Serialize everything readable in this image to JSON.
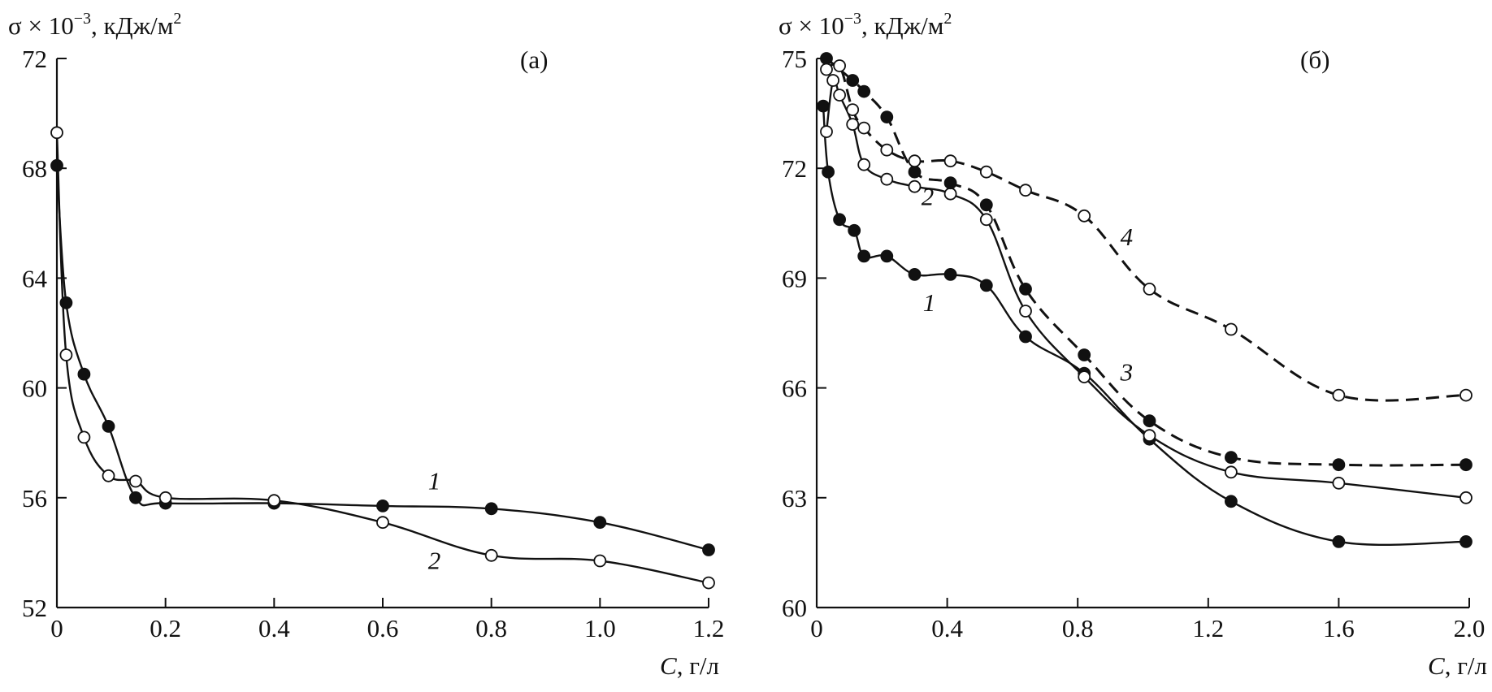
{
  "chart_data": [
    {
      "type": "line",
      "panel_label": "(а)",
      "ylabel_prefix": "σ × 10",
      "ylabel_exp": "−3",
      "ylabel_unit": ", кДж/м",
      "ylabel_unit_exp": "2",
      "xlabel_var": "C",
      "xlabel_unit": ", г/л",
      "xlim": [
        0,
        1.2
      ],
      "ylim": [
        52,
        72
      ],
      "xticks": [
        0,
        0.2,
        0.4,
        0.6,
        0.8,
        1.0,
        1.2
      ],
      "xtick_labels": [
        "0",
        "0.2",
        "0.4",
        "0.6",
        "0.8",
        "1.0",
        "1.2"
      ],
      "yticks": [
        52,
        56,
        60,
        64,
        68,
        72
      ],
      "ytick_labels": [
        "52",
        "56",
        "60",
        "64",
        "68",
        "72"
      ],
      "series": [
        {
          "name": "1",
          "marker": "filled",
          "dashed": false,
          "points": [
            [
              0,
              68.1
            ],
            [
              0.017,
              63.1
            ],
            [
              0.05,
              60.5
            ],
            [
              0.095,
              58.6
            ],
            [
              0.145,
              56.0
            ],
            [
              0.2,
              55.8
            ],
            [
              0.4,
              55.8
            ],
            [
              0.6,
              55.7
            ],
            [
              0.8,
              55.6
            ],
            [
              1.0,
              55.1
            ],
            [
              1.2,
              54.1
            ]
          ],
          "label_at": [
            0.695,
            56.3
          ]
        },
        {
          "name": "2",
          "marker": "open",
          "dashed": false,
          "points": [
            [
              0,
              69.3
            ],
            [
              0.017,
              61.2
            ],
            [
              0.05,
              58.2
            ],
            [
              0.095,
              56.8
            ],
            [
              0.145,
              56.6
            ],
            [
              0.2,
              56.0
            ],
            [
              0.4,
              55.9
            ],
            [
              0.6,
              55.1
            ],
            [
              0.8,
              53.9
            ],
            [
              1.0,
              53.7
            ],
            [
              1.2,
              52.9
            ]
          ],
          "label_at": [
            0.695,
            53.4
          ]
        }
      ]
    },
    {
      "type": "line",
      "panel_label": "(б)",
      "ylabel_prefix": "σ × 10",
      "ylabel_exp": "−3",
      "ylabel_unit": ", кДж/м",
      "ylabel_unit_exp": "2",
      "xlabel_var": "C",
      "xlabel_unit": ", г/л",
      "xlim": [
        0,
        2.0
      ],
      "ylim": [
        60,
        75
      ],
      "xticks": [
        0,
        0.4,
        0.8,
        1.2,
        1.6,
        2.0
      ],
      "xtick_labels": [
        "0",
        "0.4",
        "0.8",
        "1.2",
        "1.6",
        "2.0"
      ],
      "yticks": [
        60,
        63,
        66,
        69,
        72,
        75
      ],
      "ytick_labels": [
        "60",
        "63",
        "66",
        "69",
        "72",
        "75"
      ],
      "series": [
        {
          "name": "1",
          "marker": "filled",
          "dashed": false,
          "points": [
            [
              0.02,
              73.7
            ],
            [
              0.035,
              71.9
            ],
            [
              0.07,
              70.6
            ],
            [
              0.115,
              70.3
            ],
            [
              0.145,
              69.6
            ],
            [
              0.215,
              69.6
            ],
            [
              0.3,
              69.1
            ],
            [
              0.41,
              69.1
            ],
            [
              0.52,
              68.8
            ],
            [
              0.64,
              67.4
            ],
            [
              0.82,
              66.4
            ],
            [
              1.02,
              64.6
            ],
            [
              1.27,
              62.9
            ],
            [
              1.6,
              61.8
            ],
            [
              1.99,
              61.8
            ]
          ],
          "label_at": [
            0.345,
            68.1
          ]
        },
        {
          "name": "2",
          "marker": "open",
          "dashed": false,
          "points": [
            [
              0.03,
              73.0
            ],
            [
              0.05,
              74.4
            ],
            [
              0.07,
              74.0
            ],
            [
              0.11,
              73.2
            ],
            [
              0.145,
              72.1
            ],
            [
              0.215,
              71.7
            ],
            [
              0.3,
              71.5
            ],
            [
              0.41,
              71.3
            ],
            [
              0.52,
              70.6
            ],
            [
              0.64,
              68.1
            ],
            [
              0.82,
              66.3
            ],
            [
              1.02,
              64.7
            ],
            [
              1.27,
              63.7
            ],
            [
              1.6,
              63.4
            ],
            [
              1.99,
              63.0
            ]
          ],
          "label_at": [
            0.34,
            71.0
          ]
        },
        {
          "name": "3",
          "marker": "filled",
          "dashed": true,
          "points": [
            [
              0.03,
              75.0
            ],
            [
              0.11,
              74.4
            ],
            [
              0.145,
              74.1
            ],
            [
              0.215,
              73.4
            ],
            [
              0.3,
              71.9
            ],
            [
              0.41,
              71.6
            ],
            [
              0.52,
              71.0
            ],
            [
              0.64,
              68.7
            ],
            [
              0.82,
              66.9
            ],
            [
              1.02,
              65.1
            ],
            [
              1.27,
              64.1
            ],
            [
              1.6,
              63.9
            ],
            [
              1.99,
              63.9
            ]
          ],
          "label_at": [
            0.95,
            66.2
          ]
        },
        {
          "name": "4",
          "marker": "open",
          "dashed": true,
          "points": [
            [
              0.03,
              74.7
            ],
            [
              0.07,
              74.8
            ],
            [
              0.11,
              73.6
            ],
            [
              0.145,
              73.1
            ],
            [
              0.215,
              72.5
            ],
            [
              0.3,
              72.2
            ],
            [
              0.41,
              72.2
            ],
            [
              0.52,
              71.9
            ],
            [
              0.64,
              71.4
            ],
            [
              0.82,
              70.7
            ],
            [
              1.02,
              68.7
            ],
            [
              1.27,
              67.6
            ],
            [
              1.6,
              65.8
            ],
            [
              1.99,
              65.8
            ]
          ],
          "label_at": [
            0.95,
            69.9
          ]
        }
      ]
    }
  ]
}
